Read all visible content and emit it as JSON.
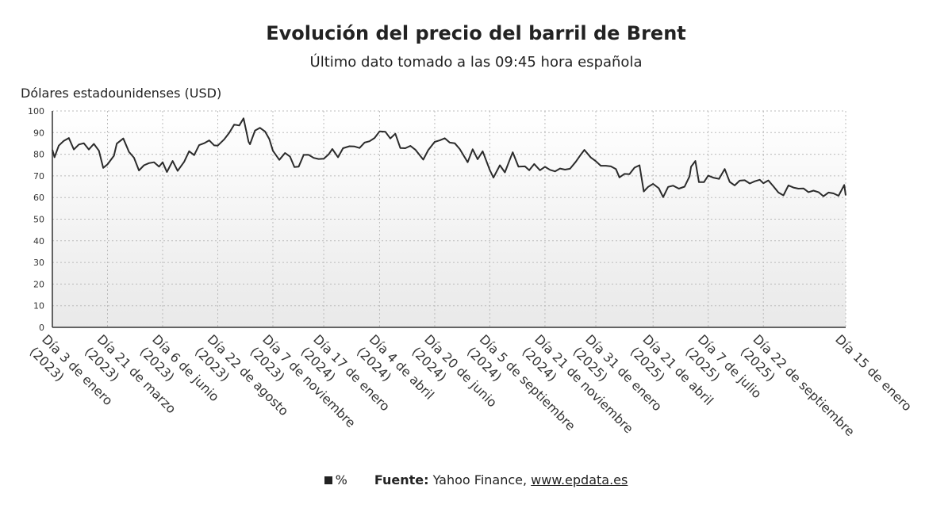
{
  "header": {
    "title": "Evolución del precio del barril de Brent",
    "subtitle": "Último dato tomado a las 09:45 hora española"
  },
  "footer": {
    "legend_label": "%",
    "source_label": "Fuente:",
    "source_text": "Yahoo Finance, ",
    "source_link": "www.epdata.es"
  },
  "colors": {
    "line": "#2b2b2b",
    "grid": "#bbbbbb"
  },
  "chart_data": {
    "type": "line",
    "title": "Evolución del precio del barril de Brent",
    "subtitle": "Último dato tomado a las 09:45 hora española",
    "ylabel": "Dólares estadounidenses (USD)",
    "ylim": [
      0,
      100
    ],
    "yticks": [
      0,
      10,
      20,
      30,
      40,
      50,
      60,
      70,
      80,
      90,
      100
    ],
    "grid": true,
    "legend": "bottom",
    "x_start": "2023-01-03",
    "x_end": "2026-01-15",
    "x_tick_labels": [
      {
        "date": "2023-01-03",
        "label": "Día 3 de enero (2023)"
      },
      {
        "date": "2023-03-21",
        "label": "Día 21 de marzo (2023)"
      },
      {
        "date": "2023-06-06",
        "label": "Día 6 de junio (2023)"
      },
      {
        "date": "2023-08-22",
        "label": "Día 22 de agosto (2023)"
      },
      {
        "date": "2023-11-07",
        "label": "Día 7 de noviembre (2023)"
      },
      {
        "date": "2024-01-17",
        "label": "Día 17 de enero (2024)"
      },
      {
        "date": "2024-04-04",
        "label": "Día 4 de abril (2024)"
      },
      {
        "date": "2024-06-20",
        "label": "Día 20 de junio (2024)"
      },
      {
        "date": "2024-09-05",
        "label": "Día 5 de septiembre (2024)"
      },
      {
        "date": "2024-11-21",
        "label": "Día 21 de noviembre (2024)"
      },
      {
        "date": "2025-01-31",
        "label": "Día 31 de enero (2025)"
      },
      {
        "date": "2025-04-21",
        "label": "Día 21 de abril (2025)"
      },
      {
        "date": "2025-07-07",
        "label": "Día 7 de julio (2025)"
      },
      {
        "date": "2025-09-22",
        "label": "Día 22 de septiembre (2025)"
      },
      {
        "date": "2026-01-15",
        "label": "Día 15 de enero"
      }
    ],
    "series": [
      {
        "name": "%",
        "points": [
          [
            "2023-01-03",
            82.1
          ],
          [
            "2023-01-06",
            78.6
          ],
          [
            "2023-01-12",
            84.0
          ],
          [
            "2023-01-19",
            86.2
          ],
          [
            "2023-01-26",
            87.5
          ],
          [
            "2023-02-02",
            82.2
          ],
          [
            "2023-02-09",
            84.5
          ],
          [
            "2023-02-16",
            85.1
          ],
          [
            "2023-02-23",
            82.2
          ],
          [
            "2023-03-02",
            84.8
          ],
          [
            "2023-03-09",
            81.6
          ],
          [
            "2023-03-15",
            73.7
          ],
          [
            "2023-03-21",
            75.3
          ],
          [
            "2023-03-30",
            79.3
          ],
          [
            "2023-04-03",
            84.9
          ],
          [
            "2023-04-12",
            87.3
          ],
          [
            "2023-04-20",
            81.1
          ],
          [
            "2023-04-27",
            78.4
          ],
          [
            "2023-05-04",
            72.5
          ],
          [
            "2023-05-11",
            74.9
          ],
          [
            "2023-05-18",
            75.9
          ],
          [
            "2023-05-25",
            76.3
          ],
          [
            "2023-06-01",
            74.3
          ],
          [
            "2023-06-06",
            76.3
          ],
          [
            "2023-06-12",
            71.8
          ],
          [
            "2023-06-20",
            76.9
          ],
          [
            "2023-06-27",
            72.3
          ],
          [
            "2023-07-06",
            76.5
          ],
          [
            "2023-07-13",
            81.4
          ],
          [
            "2023-07-20",
            79.6
          ],
          [
            "2023-07-27",
            84.2
          ],
          [
            "2023-08-03",
            85.1
          ],
          [
            "2023-08-10",
            86.4
          ],
          [
            "2023-08-17",
            84.1
          ],
          [
            "2023-08-22",
            84.0
          ],
          [
            "2023-08-31",
            86.9
          ],
          [
            "2023-09-07",
            89.9
          ],
          [
            "2023-09-14",
            93.7
          ],
          [
            "2023-09-21",
            93.3
          ],
          [
            "2023-09-27",
            96.6
          ],
          [
            "2023-10-04",
            85.8
          ],
          [
            "2023-10-06",
            84.6
          ],
          [
            "2023-10-13",
            90.9
          ],
          [
            "2023-10-20",
            92.2
          ],
          [
            "2023-10-27",
            90.5
          ],
          [
            "2023-11-02",
            87.0
          ],
          [
            "2023-11-07",
            81.6
          ],
          [
            "2023-11-16",
            77.4
          ],
          [
            "2023-11-24",
            80.6
          ],
          [
            "2023-12-01",
            78.9
          ],
          [
            "2023-12-07",
            74.1
          ],
          [
            "2023-12-13",
            74.3
          ],
          [
            "2023-12-20",
            79.7
          ],
          [
            "2023-12-27",
            79.7
          ],
          [
            "2024-01-03",
            78.3
          ],
          [
            "2024-01-10",
            77.8
          ],
          [
            "2024-01-17",
            77.9
          ],
          [
            "2024-01-24",
            80.0
          ],
          [
            "2024-01-29",
            82.4
          ],
          [
            "2024-02-06",
            78.6
          ],
          [
            "2024-02-13",
            82.8
          ],
          [
            "2024-02-22",
            83.7
          ],
          [
            "2024-02-29",
            83.6
          ],
          [
            "2024-03-07",
            82.9
          ],
          [
            "2024-03-14",
            85.4
          ],
          [
            "2024-03-21",
            86.0
          ],
          [
            "2024-03-28",
            87.5
          ],
          [
            "2024-04-04",
            90.6
          ],
          [
            "2024-04-12",
            90.4
          ],
          [
            "2024-04-19",
            87.3
          ],
          [
            "2024-04-26",
            89.5
          ],
          [
            "2024-05-03",
            82.9
          ],
          [
            "2024-05-10",
            82.8
          ],
          [
            "2024-05-17",
            83.9
          ],
          [
            "2024-05-24",
            82.1
          ],
          [
            "2024-06-04",
            77.5
          ],
          [
            "2024-06-11",
            81.9
          ],
          [
            "2024-06-20",
            85.7
          ],
          [
            "2024-06-27",
            86.4
          ],
          [
            "2024-07-04",
            87.4
          ],
          [
            "2024-07-11",
            85.4
          ],
          [
            "2024-07-18",
            85.1
          ],
          [
            "2024-07-25",
            82.4
          ],
          [
            "2024-08-05",
            76.3
          ],
          [
            "2024-08-12",
            82.3
          ],
          [
            "2024-08-19",
            77.7
          ],
          [
            "2024-08-26",
            81.4
          ],
          [
            "2024-09-05",
            72.7
          ],
          [
            "2024-09-10",
            69.2
          ],
          [
            "2024-09-19",
            74.9
          ],
          [
            "2024-09-26",
            71.6
          ],
          [
            "2024-10-03",
            77.6
          ],
          [
            "2024-10-07",
            80.9
          ],
          [
            "2024-10-15",
            74.3
          ],
          [
            "2024-10-24",
            74.4
          ],
          [
            "2024-10-30",
            72.6
          ],
          [
            "2024-11-06",
            75.5
          ],
          [
            "2024-11-14",
            72.6
          ],
          [
            "2024-11-21",
            74.2
          ],
          [
            "2024-11-28",
            72.8
          ],
          [
            "2024-12-05",
            72.1
          ],
          [
            "2024-12-12",
            73.4
          ],
          [
            "2024-12-19",
            72.9
          ],
          [
            "2024-12-26",
            73.3
          ],
          [
            "2025-01-03",
            76.5
          ],
          [
            "2025-01-10",
            79.8
          ],
          [
            "2025-01-15",
            82.0
          ],
          [
            "2025-01-24",
            78.5
          ],
          [
            "2025-01-31",
            76.8
          ],
          [
            "2025-02-07",
            74.7
          ],
          [
            "2025-02-14",
            74.7
          ],
          [
            "2025-02-21",
            74.4
          ],
          [
            "2025-02-28",
            73.2
          ],
          [
            "2025-03-05",
            69.3
          ],
          [
            "2025-03-12",
            70.9
          ],
          [
            "2025-03-19",
            70.8
          ],
          [
            "2025-03-26",
            73.8
          ],
          [
            "2025-04-02",
            74.9
          ],
          [
            "2025-04-08",
            62.8
          ],
          [
            "2025-04-14",
            64.9
          ],
          [
            "2025-04-21",
            66.3
          ],
          [
            "2025-04-29",
            64.3
          ],
          [
            "2025-05-05",
            60.2
          ],
          [
            "2025-05-12",
            64.9
          ],
          [
            "2025-05-19",
            65.5
          ],
          [
            "2025-05-27",
            64.1
          ],
          [
            "2025-06-04",
            65.0
          ],
          [
            "2025-06-11",
            69.8
          ],
          [
            "2025-06-13",
            74.2
          ],
          [
            "2025-06-19",
            76.9
          ],
          [
            "2025-06-24",
            67.1
          ],
          [
            "2025-07-01",
            67.1
          ],
          [
            "2025-07-07",
            70.1
          ],
          [
            "2025-07-14",
            69.2
          ],
          [
            "2025-07-22",
            68.6
          ],
          [
            "2025-07-30",
            73.2
          ],
          [
            "2025-08-06",
            67.2
          ],
          [
            "2025-08-13",
            65.6
          ],
          [
            "2025-08-20",
            67.8
          ],
          [
            "2025-08-27",
            68.0
          ],
          [
            "2025-09-03",
            66.5
          ],
          [
            "2025-09-10",
            67.5
          ],
          [
            "2025-09-17",
            68.2
          ],
          [
            "2025-09-22",
            66.6
          ],
          [
            "2025-09-29",
            67.9
          ],
          [
            "2025-10-06",
            65.2
          ],
          [
            "2025-10-13",
            62.3
          ],
          [
            "2025-10-20",
            61.0
          ],
          [
            "2025-10-27",
            65.6
          ],
          [
            "2025-11-03",
            64.6
          ],
          [
            "2025-11-10",
            64.1
          ],
          [
            "2025-11-17",
            64.2
          ],
          [
            "2025-11-24",
            62.5
          ],
          [
            "2025-12-01",
            63.2
          ],
          [
            "2025-12-08",
            62.5
          ],
          [
            "2025-12-15",
            60.6
          ],
          [
            "2025-12-22",
            62.3
          ],
          [
            "2025-12-29",
            61.9
          ],
          [
            "2026-01-05",
            60.8
          ],
          [
            "2026-01-09",
            63.3
          ],
          [
            "2026-01-13",
            65.8
          ],
          [
            "2026-01-15",
            61.0
          ]
        ]
      }
    ]
  }
}
